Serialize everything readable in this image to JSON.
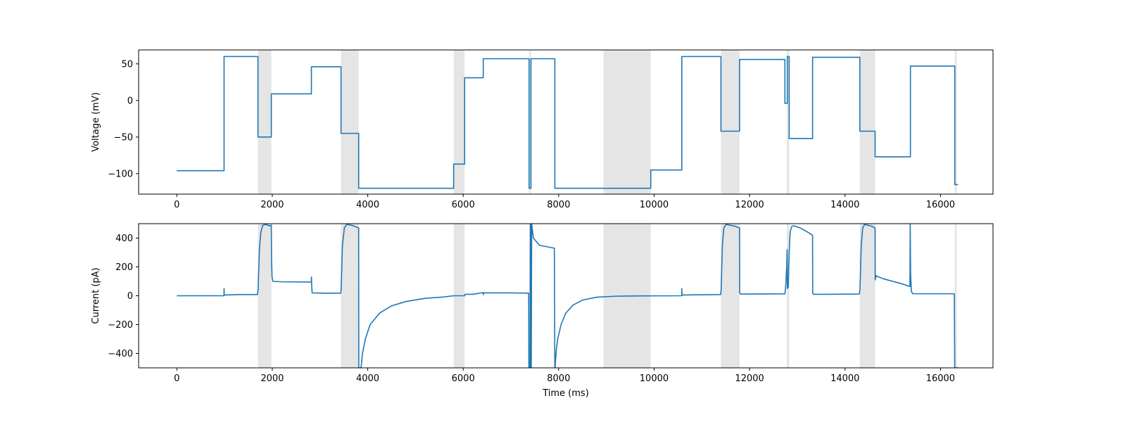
{
  "chart_data": [
    {
      "type": "line",
      "id": "voltage",
      "title": "",
      "xlabel": "",
      "ylabel": "Voltage (mV)",
      "xlim": [
        -800,
        17100
      ],
      "ylim": [
        -128,
        69
      ],
      "xticks": [
        0,
        2000,
        4000,
        6000,
        8000,
        10000,
        12000,
        14000,
        16000
      ],
      "yticks": [
        50,
        0,
        -50,
        -100
      ],
      "grid": false,
      "line_color": "#1f77b4",
      "shade_color": "#e5e5e5",
      "shaded_regions": [
        [
          1700,
          1980
        ],
        [
          3440,
          3810
        ],
        [
          5800,
          6030
        ],
        [
          7380,
          7420
        ],
        [
          8940,
          9930
        ],
        [
          11400,
          11790
        ],
        [
          12780,
          12830
        ],
        [
          14310,
          14630
        ],
        [
          16300,
          16340
        ]
      ],
      "series": [
        {
          "x": [
            0,
            990,
            990,
            1700,
            1700,
            1980,
            1980,
            2820,
            2820,
            3440,
            3440,
            3810,
            3810,
            5800,
            5800,
            6030,
            6030,
            6420,
            6420,
            7380,
            7380,
            7420,
            7420,
            7920,
            7920,
            9930,
            9930,
            10580,
            10580,
            11400,
            11400,
            11790,
            11790,
            12740,
            12740,
            12790,
            12790,
            12830,
            12830,
            13320,
            13320,
            14310,
            14310,
            14630,
            14630,
            15370,
            15370,
            16300,
            16300,
            16370
          ],
          "y": [
            -96,
            -96,
            60,
            60,
            -50,
            -50,
            9,
            9,
            46,
            46,
            -45,
            -45,
            -120,
            -120,
            -87,
            -87,
            31,
            31,
            57,
            57,
            -120,
            -120,
            57,
            57,
            -120,
            -120,
            -95,
            -95,
            60,
            60,
            -42,
            -42,
            56,
            56,
            -4,
            -4,
            60,
            60,
            -52,
            -52,
            59,
            59,
            -42,
            -42,
            -77,
            -77,
            47,
            47,
            -115,
            -115
          ]
        }
      ]
    },
    {
      "type": "line",
      "id": "current",
      "title": "",
      "xlabel": "Time (ms)",
      "ylabel": "Current (pA)",
      "xlim": [
        -800,
        17100
      ],
      "ylim": [
        -500,
        500
      ],
      "xticks": [
        0,
        2000,
        4000,
        6000,
        8000,
        10000,
        12000,
        14000,
        16000
      ],
      "yticks": [
        400,
        200,
        0,
        -200,
        -400
      ],
      "grid": false,
      "line_color": "#1f77b4",
      "shade_color": "#e5e5e5",
      "shaded_regions": [
        [
          1700,
          1980
        ],
        [
          3440,
          3810
        ],
        [
          5800,
          6030
        ],
        [
          7380,
          7420
        ],
        [
          8940,
          9930
        ],
        [
          11400,
          11790
        ],
        [
          12780,
          12830
        ],
        [
          14310,
          14630
        ],
        [
          16300,
          16340
        ]
      ],
      "series": [
        {
          "x": [
            0,
            988,
            990,
            993,
            1000,
            1300,
            1690,
            1702,
            1730,
            1760,
            1800,
            1860,
            1940,
            1980,
            1985,
            1995,
            2010,
            2200,
            2818,
            2821,
            2824,
            2835,
            3100,
            3435,
            3442,
            3470,
            3510,
            3560,
            3620,
            3700,
            3810,
            3812,
            3860,
            3890,
            3950,
            4050,
            4250,
            4500,
            4800,
            5200,
            5600,
            5800,
            6000,
            6030,
            6040,
            6200,
            6420,
            6422,
            6430,
            7000,
            7372,
            7376,
            7400,
            7408,
            7412,
            7418,
            7426,
            7435,
            7470,
            7600,
            7910,
            7920,
            7925,
            7935,
            7950,
            7980,
            8050,
            8150,
            8300,
            8500,
            8800,
            9200,
            9700,
            10578,
            10580,
            10583,
            10595,
            11000,
            11392,
            11404,
            11430,
            11460,
            11510,
            11580,
            11690,
            11790,
            11793,
            11810,
            12000,
            12735,
            12742,
            12760,
            12770,
            12778,
            12786,
            12790,
            12792,
            12810,
            12830,
            12850,
            12880,
            12920,
            12980,
            13060,
            13200,
            13320,
            13322,
            13340,
            13600,
            14300,
            14312,
            14340,
            14370,
            14410,
            14470,
            14550,
            14630,
            14632,
            14650,
            14670,
            14800,
            15000,
            15200,
            15360,
            15366,
            15370,
            15374,
            15390,
            15420,
            15500,
            15900,
            16290,
            16298,
            16310,
            16370
          ],
          "y": [
            0,
            0,
            50,
            10,
            5,
            8,
            8,
            40,
            320,
            440,
            488,
            495,
            485,
            490,
            250,
            130,
            100,
            97,
            95,
            130,
            80,
            20,
            18,
            18,
            40,
            350,
            470,
            495,
            492,
            485,
            470,
            -500,
            -500,
            -400,
            -300,
            -200,
            -120,
            -70,
            -40,
            -18,
            -8,
            0,
            0,
            0,
            10,
            10,
            22,
            8,
            20,
            20,
            18,
            -500,
            -500,
            500,
            500,
            -500,
            -500,
            500,
            400,
            350,
            330,
            -500,
            -500,
            -450,
            -380,
            -300,
            -200,
            -120,
            -65,
            -30,
            -10,
            -3,
            -1,
            0,
            50,
            5,
            5,
            7,
            8,
            40,
            350,
            470,
            495,
            490,
            483,
            470,
            20,
            12,
            12,
            13,
            15,
            80,
            160,
            200,
            320,
            200,
            50,
            60,
            300,
            440,
            480,
            485,
            480,
            470,
            445,
            420,
            18,
            10,
            10,
            12,
            40,
            350,
            470,
            495,
            490,
            483,
            470,
            110,
            140,
            135,
            118,
            100,
            82,
            64,
            500,
            300,
            150,
            30,
            14,
            14,
            14,
            14,
            -500,
            -500,
            -500
          ]
        }
      ]
    }
  ]
}
